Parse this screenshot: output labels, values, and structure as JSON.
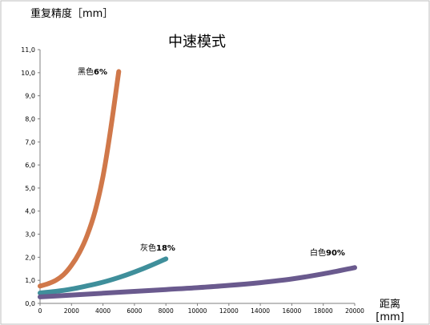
{
  "chart_data": {
    "type": "line",
    "title": "中速模式",
    "ylabel": "重复精度［mm］",
    "xlabel_line1": "距离",
    "xlabel_line2": "[mm]",
    "xlim": [
      0,
      20000
    ],
    "ylim": [
      0,
      11
    ],
    "xticks": [
      0,
      2000,
      4000,
      6000,
      8000,
      10000,
      12000,
      14000,
      16000,
      18000,
      20000
    ],
    "xtick_labels": [
      "0",
      "2000",
      "4000",
      "6000",
      "8000",
      "10000",
      "12000",
      "14000",
      "16000",
      "18000",
      "20000"
    ],
    "yticks": [
      0,
      1,
      2,
      3,
      4,
      5,
      6,
      7,
      8,
      9,
      10,
      11
    ],
    "ytick_labels": [
      "0,0",
      "1,0",
      "2,0",
      "3,0",
      "4,0",
      "5,0",
      "6,0",
      "7,0",
      "8,0",
      "9,0",
      "10,0",
      "11,0"
    ],
    "grid": false,
    "series": [
      {
        "name": "黑色",
        "pct": "6%",
        "color": "#D0784A",
        "x": [
          0,
          500,
          1000,
          1500,
          2000,
          2500,
          3000,
          3500,
          4000,
          4500,
          5000
        ],
        "y": [
          0.75,
          0.85,
          1.0,
          1.25,
          1.65,
          2.2,
          2.95,
          4.0,
          5.5,
          7.6,
          10.05
        ]
      },
      {
        "name": "灰色",
        "pct": "18%",
        "color": "#3F8F9B",
        "x": [
          0,
          1000,
          2000,
          3000,
          4000,
          5000,
          6000,
          7000,
          8000
        ],
        "y": [
          0.45,
          0.52,
          0.62,
          0.76,
          0.92,
          1.12,
          1.36,
          1.63,
          1.93
        ]
      },
      {
        "name": "白色",
        "pct": "90%",
        "color": "#6A5A8E",
        "x": [
          0,
          2000,
          4000,
          6000,
          8000,
          10000,
          12000,
          14000,
          16000,
          18000,
          20000
        ],
        "y": [
          0.28,
          0.36,
          0.44,
          0.52,
          0.6,
          0.68,
          0.78,
          0.9,
          1.06,
          1.28,
          1.55
        ]
      }
    ]
  }
}
